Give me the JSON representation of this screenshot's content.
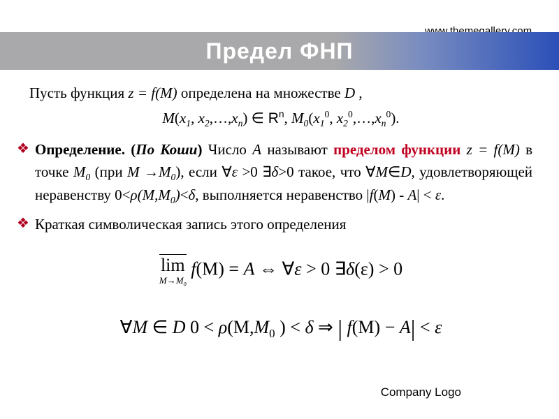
{
  "header": {
    "url_line": "www.themegallery.com",
    "title": "Предел ФНП",
    "title_bar_gradient": [
      "#a9a9ab",
      "#a9a9ab",
      "#7a8dc0",
      "#2a4fb8"
    ],
    "title_color": "#ffffff"
  },
  "content": {
    "line1_pre": "Пусть функция ",
    "line1_zfm": "z = f(M)",
    "line1_mid": " определена на множестве ",
    "line1_D": "D ",
    "line1_end": ",",
    "line2_M": "M",
    "line2_paren_open": "(",
    "line2_x1": "x",
    "line2_s1": "1",
    "line2_comma1": ", ",
    "line2_x2": "x",
    "line2_s2": "2",
    "line2_dots": ",…,",
    "line2_xn": "x",
    "line2_sn": "n",
    "line2_paren_close": ") ",
    "line2_in": "∈",
    "line2_Rn_R": " R",
    "line2_Rn_n": "n",
    "line2_after": ",   ",
    "line2_M0": "M",
    "line2_M0s": "0",
    "line2_p2open": "(",
    "line2_x10": "x",
    "line2_x10_1": "1",
    "line2_x10_0": "0",
    "line2_c2": ", ",
    "line2_x20": "x",
    "line2_x20_2": "2",
    "line2_x20_0": "0",
    "line2_d2": ",…,",
    "line2_xn0": "x",
    "line2_xn0_n": "n",
    "line2_xn0_0": "0",
    "line2_end": ").",
    "def_label": "Определение. (",
    "def_koshi": "По Коши",
    "def_close": ") ",
    "def_text1": "Число ",
    "def_A": "A",
    "def_text2": " называют ",
    "def_limit": "пределом функции",
    "def_line2a": "z = f(M)",
    "def_line2b": "   в точке ",
    "def_M0": "M",
    "def_M0s": "0",
    "def_line2c": "  (при ",
    "def_M": "M ",
    "def_arrow": "→",
    "def_M0b": "M",
    "def_M0bs": "0",
    "def_line2d": "), если  ",
    "def_forall1": "∀",
    "def_eps1": "ε ",
    "def_gt1": ">",
    "def_zero1": "0  ",
    "def_exists": "∃",
    "def_delta1": "δ",
    "def_gt2": ">",
    "def_zero2": "0 такое, что",
    "def_line3a": "∀",
    "def_line3M": "M",
    "def_line3in": "∈",
    "def_line3D": "D",
    "def_line3b": ",    удовлетворяющей    неравенству    0",
    "def_lt1": "<",
    "def_rho": "ρ",
    "def_line3p": "(M,M",
    "def_line3p0": "0",
    "def_line3pc": ")",
    "def_lt2": "<",
    "def_delta2": "δ",
    "def_line3end": ",",
    "def_line4a": "выполняется неравенство   |",
    "def_line4f": "f",
    "def_line4p": "(",
    "def_line4M": "M",
    "def_line4c": ") ",
    "def_line4m": "- ",
    "def_line4A": "A",
    "def_line4abs": "| ",
    "def_lt3": "<",
    "def_eps2": " ε",
    "def_line4end": ".",
    "bullet2_text": "Краткая символическая запись  этого определения",
    "formula1_lim": "lim",
    "formula1_sub_M": "M",
    "formula1_sub_arrow": "→",
    "formula1_sub_M0": "M",
    "formula1_sub_0": "0",
    "formula1_f": " f",
    "formula1_paren": "(M)",
    "formula1_eq": " = ",
    "formula1_A": "A",
    "formula1_iff": " ⇔ ",
    "formula1_forall": "∀",
    "formula1_eps": "ε",
    "formula1_gt": " > ",
    "formula1_z": "0   ",
    "formula1_ex": "∃",
    "formula1_delta": "δ",
    "formula1_de": "(ε)",
    "formula1_gt2": " > ",
    "formula1_z2": "0",
    "formula2_forall": "∀",
    "formula2_M": "M",
    "formula2_in": " ∈ ",
    "formula2_D": "D",
    "formula2_sp": "   0 < ",
    "formula2_rho": "ρ",
    "formula2_p": "(M",
    "formula2_c": ",",
    "formula2_M0": "M",
    "formula2_0": "0",
    "formula2_pc": " )",
    "formula2_lt": " < ",
    "formula2_delta": "δ",
    "formula2_imp": " ⇒  ",
    "formula2_abs1": "|",
    "formula2_f": " f",
    "formula2_fp": "(M)",
    "formula2_minus": " − ",
    "formula2_A": "A",
    "formula2_abs2": "|",
    "formula2_lt2": " < ",
    "formula2_eps": "ε"
  },
  "footer": {
    "text": "Company Logo"
  },
  "style": {
    "bullet_color": "#b00020",
    "red_color": "#c00020",
    "text_color": "#000000",
    "background": "#ffffff"
  }
}
